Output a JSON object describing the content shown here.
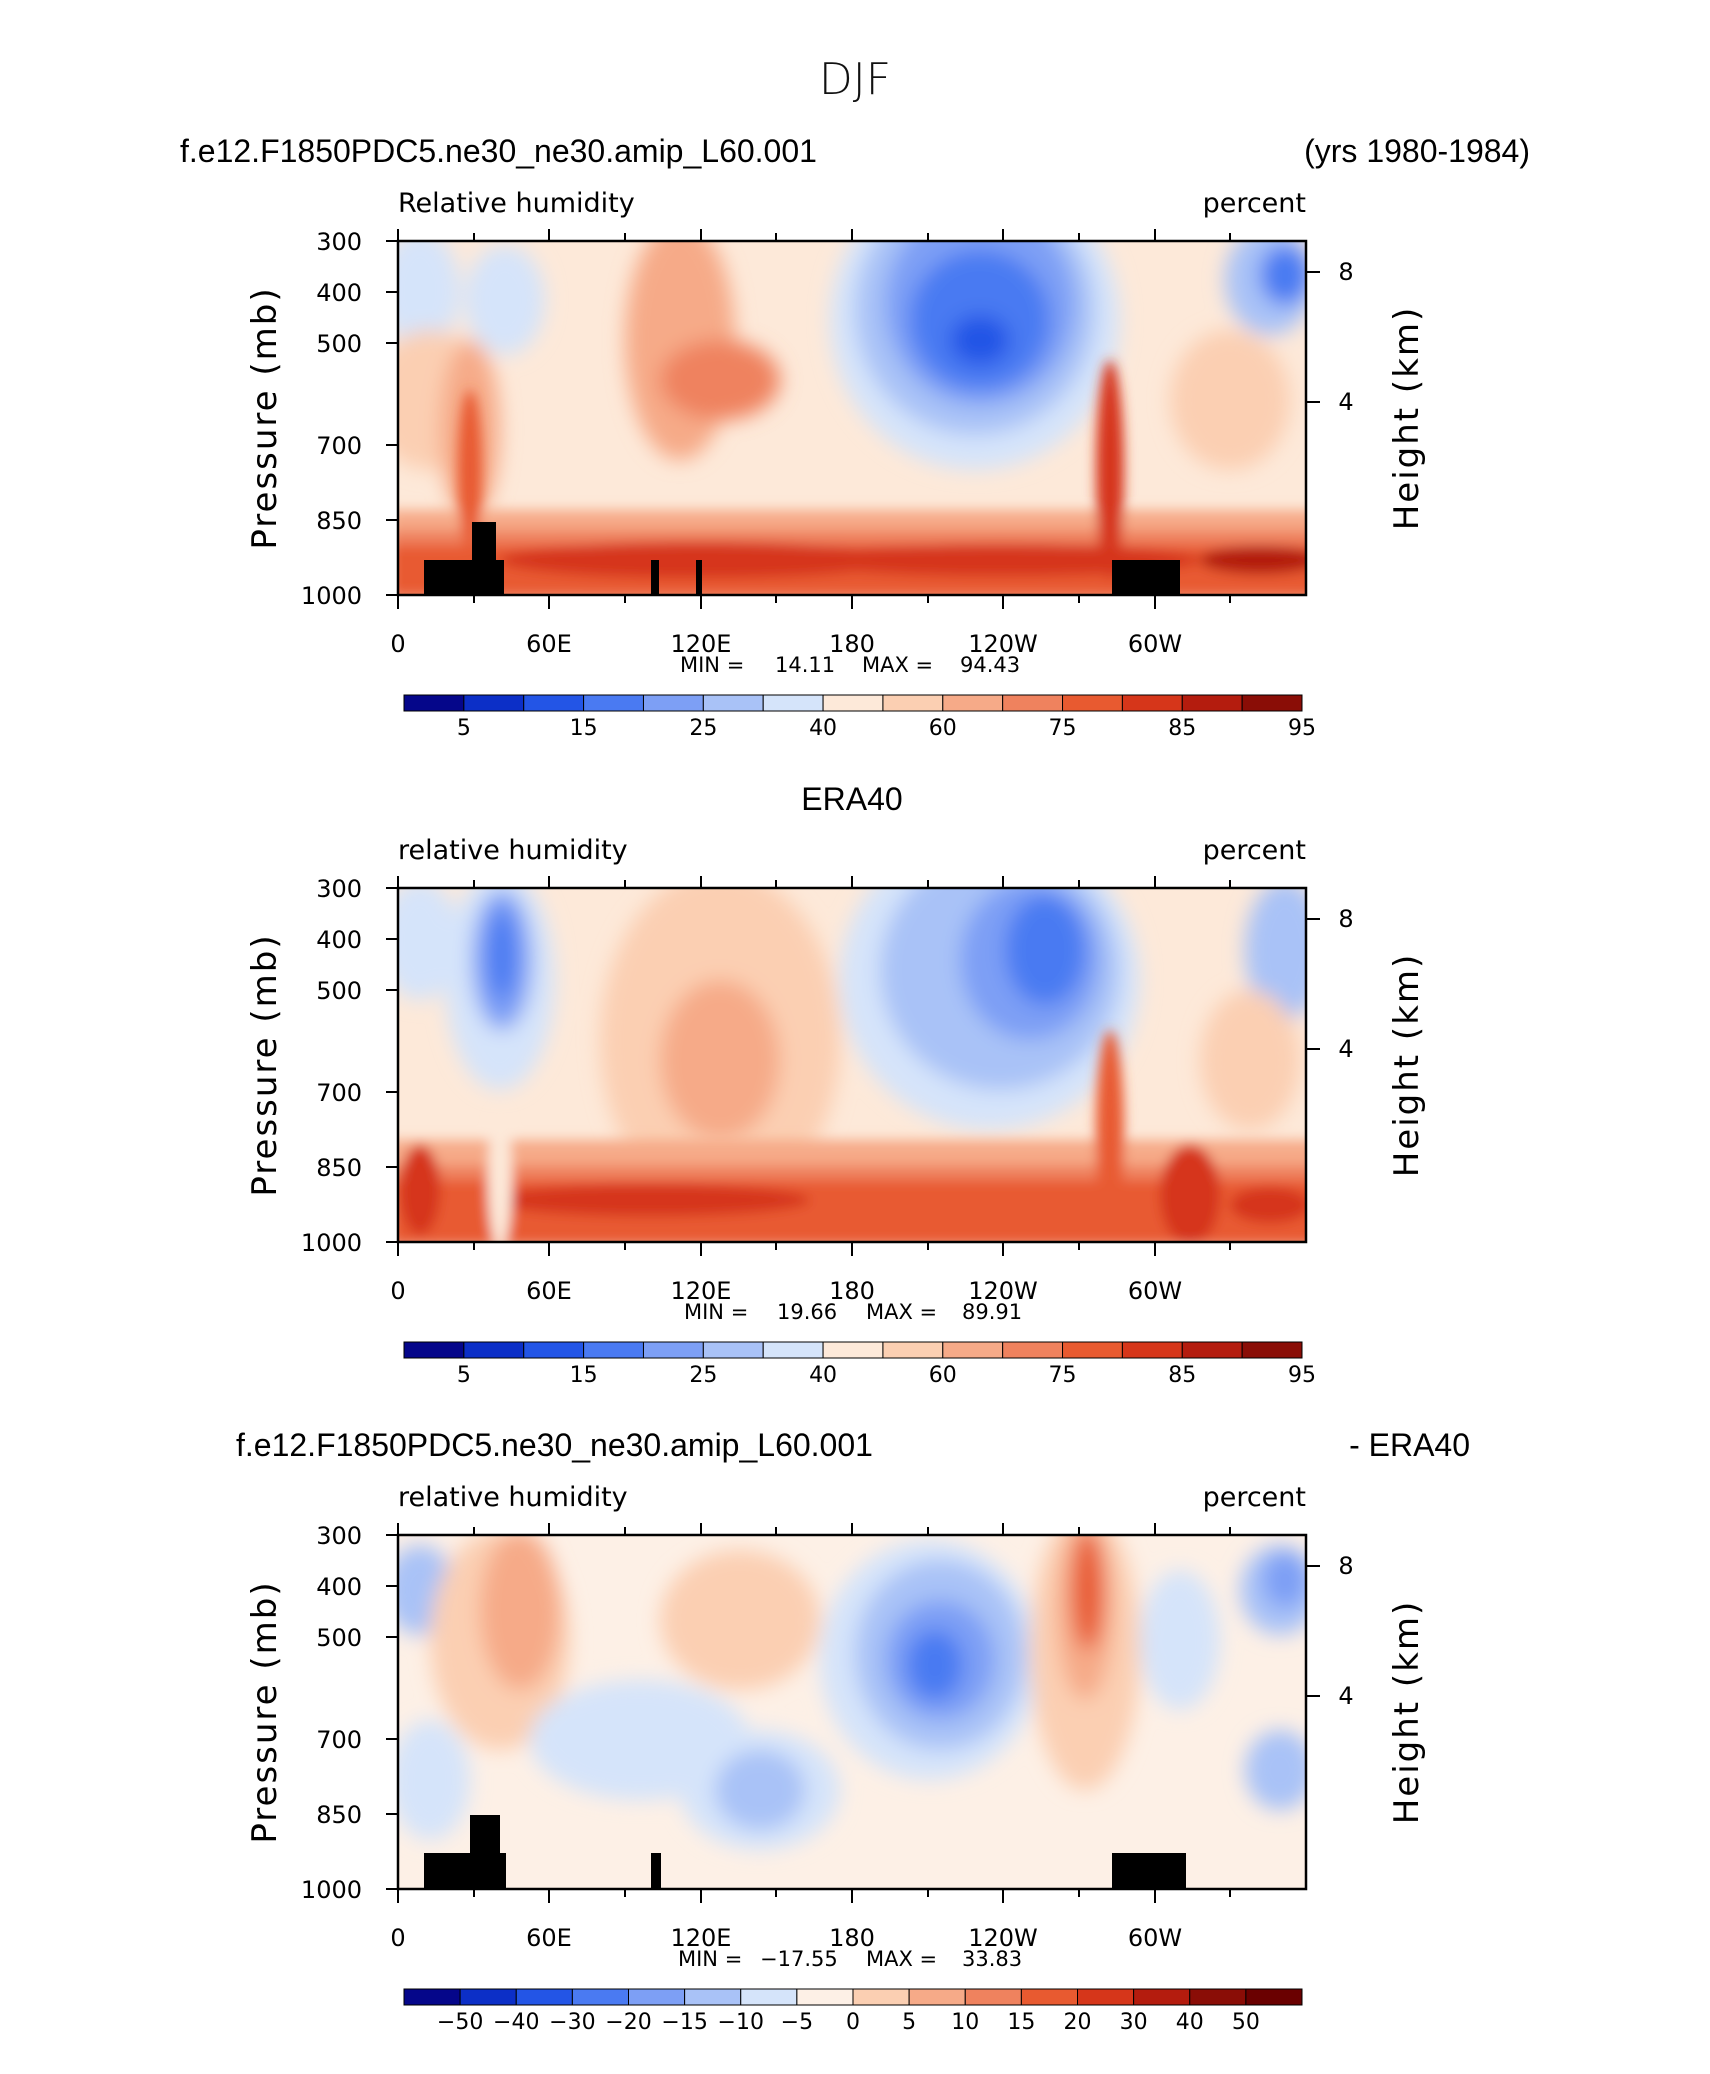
{
  "page_title": "DJF",
  "chart_data": [
    {
      "type": "heatmap",
      "title_left": "f.e12.F1850PDC5.ne30_ne30.amip_L60.001",
      "title_right": "(yrs 1980-1984)",
      "variable_label": "Relative humidity",
      "units_label": "percent",
      "ylabel": "Pressure (mb)",
      "ylabel_right": "Height (km)",
      "y_ticks": [
        "300",
        "400",
        "500",
        "700",
        "850",
        "1000"
      ],
      "y_ticks_right": [
        "8",
        "4"
      ],
      "x_ticks": [
        "0",
        "60E",
        "120E",
        "180",
        "120W",
        "60W"
      ],
      "min_label": "MIN =",
      "min_value": "14.11",
      "max_label": "MAX =",
      "max_value": "94.43",
      "colorbar_labels": [
        "5",
        "15",
        "25",
        "40",
        "60",
        "75",
        "85",
        "95"
      ],
      "colorbar_colors": [
        "#05068a",
        "#0c2fc7",
        "#2355e6",
        "#4a7af2",
        "#7d9ff5",
        "#a9c2f7",
        "#d5e4fa",
        "#fde9d9",
        "#fbcfb2",
        "#f6aa88",
        "#ef825e",
        "#e85a30",
        "#d6361a",
        "#b41c0e",
        "#8a0d06"
      ]
    },
    {
      "type": "heatmap",
      "title_center": "ERA40",
      "variable_label": "relative humidity",
      "units_label": "percent",
      "ylabel": "Pressure (mb)",
      "ylabel_right": "Height (km)",
      "y_ticks": [
        "300",
        "400",
        "500",
        "700",
        "850",
        "1000"
      ],
      "y_ticks_right": [
        "8",
        "4"
      ],
      "x_ticks": [
        "0",
        "60E",
        "120E",
        "180",
        "120W",
        "60W"
      ],
      "min_label": "MIN =",
      "min_value": "19.66",
      "max_label": "MAX =",
      "max_value": "89.91",
      "colorbar_labels": [
        "5",
        "15",
        "25",
        "40",
        "60",
        "75",
        "85",
        "95"
      ],
      "colorbar_colors": [
        "#05068a",
        "#0c2fc7",
        "#2355e6",
        "#4a7af2",
        "#7d9ff5",
        "#a9c2f7",
        "#d5e4fa",
        "#fde9d9",
        "#fbcfb2",
        "#f6aa88",
        "#ef825e",
        "#e85a30",
        "#d6361a",
        "#b41c0e",
        "#8a0d06"
      ]
    },
    {
      "type": "heatmap",
      "title_left": "f.e12.F1850PDC5.ne30_ne30.amip_L60.001",
      "title_right": "- ERA40",
      "variable_label": "relative humidity",
      "units_label": "percent",
      "ylabel": "Pressure (mb)",
      "ylabel_right": "Height (km)",
      "y_ticks": [
        "300",
        "400",
        "500",
        "700",
        "850",
        "1000"
      ],
      "y_ticks_right": [
        "8",
        "4"
      ],
      "x_ticks": [
        "0",
        "60E",
        "120E",
        "180",
        "120W",
        "60W"
      ],
      "min_label": "MIN =",
      "min_value": "−17.55",
      "max_label": "MAX =",
      "max_value": "33.83",
      "colorbar_labels": [
        "−50",
        "−40",
        "−30",
        "−20",
        "−15",
        "−10",
        "−5",
        "0",
        "5",
        "10",
        "15",
        "20",
        "30",
        "40",
        "50"
      ],
      "colorbar_colors": [
        "#05068a",
        "#0c2fc7",
        "#2355e6",
        "#4a7af2",
        "#7d9ff5",
        "#a9c2f7",
        "#d5e4fa",
        "#fdf0e6",
        "#fbcfb2",
        "#f6aa88",
        "#ef825e",
        "#e85a30",
        "#d6361a",
        "#b41c0e",
        "#8a0d06",
        "#6a0000"
      ]
    }
  ]
}
